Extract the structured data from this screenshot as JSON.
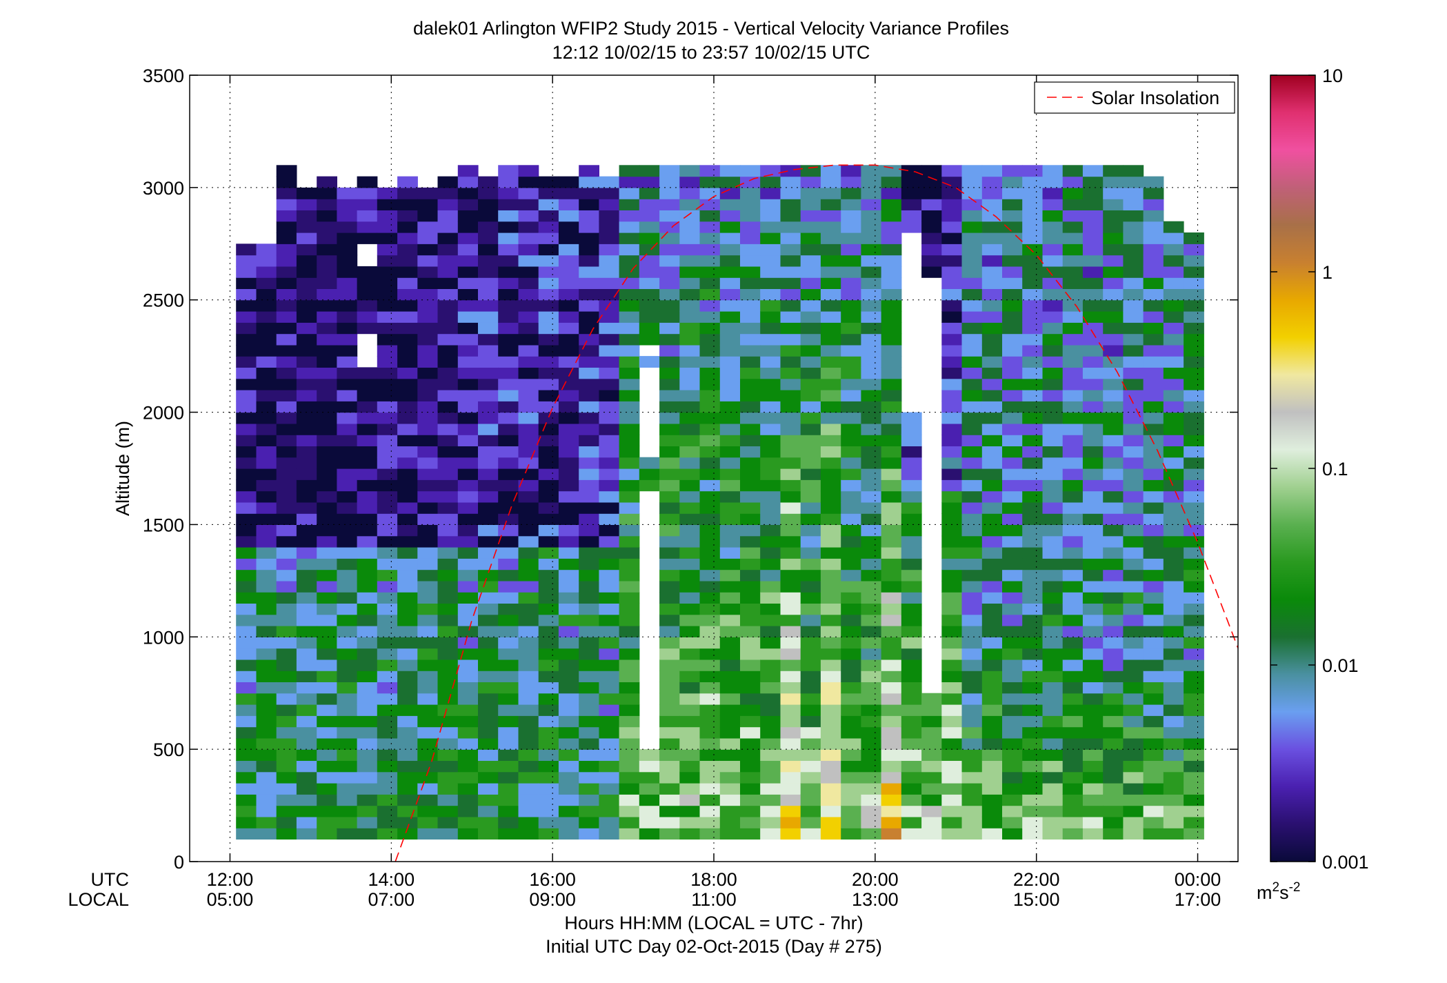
{
  "chart_data": {
    "type": "heatmap",
    "title": "dalek01 Arlington WFIP2 Study 2015 - Vertical Velocity Variance Profiles",
    "subtitle": "12:12 10/02/15 to 23:57 10/02/15  UTC",
    "xlabel": "Hours HH:MM  (LOCAL = UTC - 7hr)",
    "xlabel2": "Initial UTC Day 02-Oct-2015 (Day # 275)",
    "ylabel": "Altitude (m)",
    "xlim": [
      11.5,
      24.5
    ],
    "ylim": [
      0,
      3500
    ],
    "x_row_labels": [
      "UTC",
      "LOCAL"
    ],
    "x_ticks": [
      {
        "value": 12,
        "utc": "12:00",
        "local": "05:00"
      },
      {
        "value": 14,
        "utc": "14:00",
        "local": "07:00"
      },
      {
        "value": 16,
        "utc": "16:00",
        "local": "09:00"
      },
      {
        "value": 18,
        "utc": "18:00",
        "local": "11:00"
      },
      {
        "value": 20,
        "utc": "20:00",
        "local": "13:00"
      },
      {
        "value": 22,
        "utc": "22:00",
        "local": "15:00"
      },
      {
        "value": 24,
        "utc": "00:00",
        "local": "17:00"
      }
    ],
    "y_ticks": [
      0,
      500,
      1000,
      1500,
      2000,
      2500,
      3000,
      3500
    ],
    "y_tick_labels": [
      "0",
      "500",
      "1000",
      "1500",
      "2000",
      "2500",
      "3000",
      "3500"
    ],
    "grid": true,
    "legend": {
      "placement": "top-right",
      "entry": "Solar Insolation"
    },
    "colorbar": {
      "scale": "log",
      "range": [
        0.001,
        10
      ],
      "ticks": [
        0.001,
        0.01,
        0.1,
        1,
        10
      ],
      "tick_labels": [
        "0.001",
        "0.01",
        "0.1",
        "1",
        "10"
      ],
      "unit_main": "m",
      "unit_sup1": "2",
      "unit_mid": "s",
      "unit_sup2": "-2",
      "colors": [
        "#0a0a3a",
        "#2a1070",
        "#4a20b0",
        "#6a50e0",
        "#6a9ff0",
        "#4a90a0",
        "#1a7030",
        "#0a8a0a",
        "#2a9a20",
        "#5ab050",
        "#a0d090",
        "#dfeedd",
        "#c0c0c0",
        "#f0e8a0",
        "#f2d000",
        "#e8a800",
        "#c88030",
        "#a87048",
        "#c06078",
        "#f050a0",
        "#e03070",
        "#a00020"
      ]
    },
    "solar_insolation": {
      "name": "Solar Insolation",
      "color": "#ff0000",
      "x": [
        14.05,
        14.5,
        15.0,
        15.5,
        16.0,
        16.5,
        17.0,
        17.5,
        18.0,
        18.5,
        19.0,
        19.5,
        20.0,
        20.5,
        21.0,
        21.5,
        22.0,
        22.5,
        23.0,
        23.5,
        24.0,
        24.5
      ],
      "y": [
        0,
        445,
        1075,
        1590,
        2020,
        2370,
        2640,
        2830,
        2960,
        3040,
        3080,
        3100,
        3100,
        3070,
        3000,
        2870,
        2700,
        2470,
        2180,
        1830,
        1420,
        950
      ]
    },
    "field": {
      "x_start": 12.2,
      "x_step": 0.25,
      "n_cols": 48,
      "y_start": 100,
      "y_step": 50,
      "n_rows": 60,
      "col_top_altitudes": [
        2750,
        2750,
        3100,
        3000,
        3050,
        3000,
        3050,
        3000,
        3050,
        3000,
        3050,
        3150,
        3050,
        3100,
        3100,
        3050,
        3050,
        3150,
        3050,
        3100,
        3200,
        3100,
        3150,
        3150,
        3100,
        3100,
        3100,
        3150,
        3150,
        3100,
        3150,
        3150,
        3250,
        3250,
        3250,
        3200,
        3150,
        3100,
        3150,
        3300,
        3200,
        3100,
        3150,
        3200,
        3100,
        3050,
        2850,
        2800
      ],
      "gap_cells": [
        {
          "col": 6,
          "from": 2200,
          "to": 2350
        },
        {
          "col": 6,
          "from": 2650,
          "to": 2750
        },
        {
          "col": 20,
          "from": 500,
          "to": 1650
        },
        {
          "col": 20,
          "from": 1800,
          "to": 2200
        },
        {
          "col": 20,
          "from": 2250,
          "to": 2300
        },
        {
          "col": 33,
          "from": 2000,
          "to": 2800
        },
        {
          "col": 34,
          "from": 750,
          "to": 2600
        }
      ]
    }
  }
}
